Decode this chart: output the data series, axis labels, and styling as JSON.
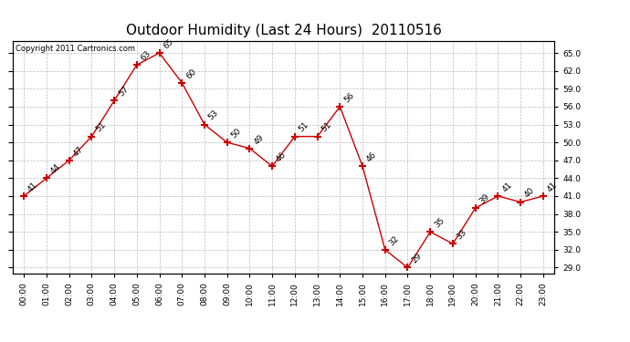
{
  "title": "Outdoor Humidity (Last 24 Hours)  20110516",
  "copyright_text": "Copyright 2011 Cartronics.com",
  "hours": [
    "00:00",
    "01:00",
    "02:00",
    "03:00",
    "04:00",
    "05:00",
    "06:00",
    "07:00",
    "08:00",
    "09:00",
    "10:00",
    "11:00",
    "12:00",
    "13:00",
    "14:00",
    "15:00",
    "16:00",
    "17:00",
    "18:00",
    "19:00",
    "20:00",
    "21:00",
    "22:00",
    "23:00"
  ],
  "values": [
    41,
    44,
    47,
    51,
    57,
    63,
    65,
    60,
    53,
    50,
    49,
    46,
    51,
    51,
    56,
    46,
    32,
    29,
    35,
    33,
    39,
    41,
    40,
    41
  ],
  "line_color": "#cc0000",
  "marker": "+",
  "marker_size": 6,
  "marker_color": "#cc0000",
  "bg_color": "#ffffff",
  "grid_color": "#bbbbbb",
  "ylim_min": 28.0,
  "ylim_max": 67.0,
  "yticks": [
    29.0,
    32.0,
    35.0,
    38.0,
    41.0,
    44.0,
    47.0,
    50.0,
    53.0,
    56.0,
    59.0,
    62.0,
    65.0
  ],
  "title_fontsize": 11,
  "tick_fontsize": 6.5,
  "annot_fontsize": 6.5,
  "copyright_fontsize": 6.0
}
